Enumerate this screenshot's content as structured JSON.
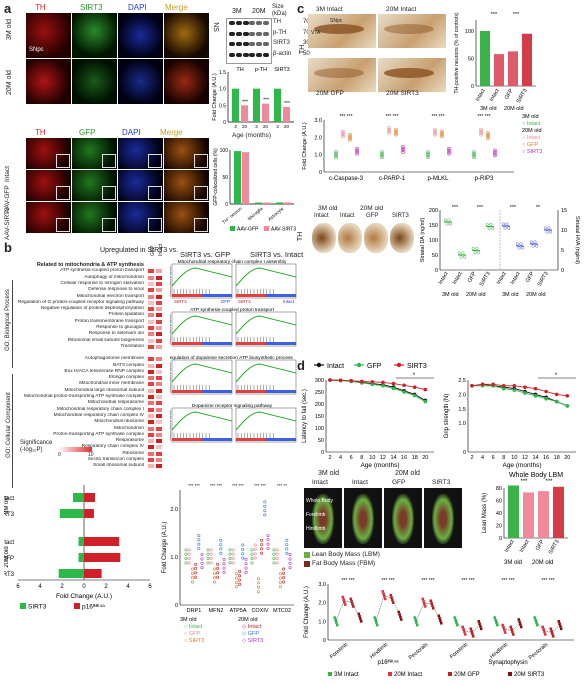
{
  "panel_letters": {
    "a": "a",
    "b": "b",
    "c": "c",
    "d": "d"
  },
  "panel_a": {
    "stain_labels": [
      "TH",
      "SIRT3",
      "DAPI",
      "Merge"
    ],
    "rows": [
      "3M old",
      "20M old"
    ],
    "snpc": "SNpc",
    "blot": {
      "title_3m": "3M",
      "title_20m": "20M",
      "size_label": "Size\n(kDa)",
      "region": "SN",
      "bands": [
        "TH",
        "p-TH",
        "SIRT3",
        "β-actin"
      ],
      "sizes": [
        "70",
        "70",
        "30",
        "50"
      ]
    },
    "chart_data": {
      "type": "bar",
      "categories": [
        "TH",
        "p-TH",
        "SIRT3"
      ],
      "series": [
        {
          "name": "3",
          "values": [
            1.0,
            1.0,
            1.0
          ]
        },
        {
          "name": "20",
          "values": [
            0.5,
            0.55,
            0.45
          ]
        }
      ],
      "ylabel": "Fold Change (A.U.)",
      "xlabel": "Age (months)",
      "ylim": [
        0,
        1.5
      ],
      "yticks": [
        "0",
        "0.5",
        "1.0",
        "1.5"
      ],
      "xticks": [
        "3",
        "20",
        "3",
        "20",
        "3",
        "20"
      ],
      "sig": [
        "***",
        "***",
        "***"
      ]
    },
    "stain2": [
      "TH",
      "GFP",
      "DAPI",
      "Merge"
    ],
    "rows2": [
      "Intact",
      "AAV-GFP",
      "AAV-SIRT3"
    ],
    "coloc": {
      "ylabel": "GFP-colocalized cells (%)",
      "yticks": [
        "0",
        "50",
        "100"
      ],
      "categories": [
        "TH⁺ neuron",
        "Microglia",
        "Astrocyte"
      ],
      "legend": [
        "AAV-GFP",
        "AAV-SIRT3"
      ],
      "values_gfp": [
        98,
        2,
        3
      ],
      "values_sirt3": [
        96,
        2,
        3
      ]
    }
  },
  "panel_b": {
    "heading": "Upregulated in SIRT3 vs.",
    "col_heads": [
      "GFP",
      "Intact"
    ],
    "bp_label": "GO: Biological Process",
    "cc_label": "GO: Cellular Component",
    "bp_terms": [
      "Related to mitochondria & ATP synthesis",
      "ATP synthesis-coupled proton transport",
      "Autophagy of mitochondrion",
      "Cellular response to nitrogen starvation",
      "Defense response to virus",
      "Mitochondrial electron transport",
      "Regulation of G protein-coupled receptor signaling pathway",
      "Negative regulation of protein dephosphorylation",
      "Protein lipidation",
      "Proton transmembrane transport",
      "Response to glucagon",
      "Response to selenium ion",
      "Ribosomal small subunit biogenesis",
      "Translation"
    ],
    "cc_terms": [
      "Autophagosome membrane",
      "BAT3 complex",
      "Box H/ACA telomerase RNP complex",
      "Elongin complex",
      "Mitochondrial inner membrane",
      "Mitochondrial large ribosomal subunit",
      "Mitochondrial proton-transporting ATP synthase complex",
      "Mitochondrial respirasome",
      "Mitochondrial respiratory chain complex I",
      "Mitochondrial respiratory chain complex IV",
      "Mitochondrial ribosome",
      "Mitochondrion",
      "Proton-transporting ATP synthase complex",
      "Respirasome",
      "Respiratory chain complex IV",
      "Ribosome",
      "Sec61 translocon complex",
      "Small ribosomal subunit"
    ],
    "sig_label": "Significance\n(-log₁₀P)",
    "sig_scale": [
      "0",
      "10"
    ],
    "gsea_titles": [
      "SIRT3 vs. GFP",
      "SIRT3 vs. Intact"
    ],
    "gsea_sets": [
      "Mitochondrial respiratory chain complex I assembly",
      "ATP synthesis-coupled proton transport",
      "Regulation of dopamine secretion",
      "ATP biosynthetic process",
      "Dopamine receptor signaling pathway"
    ],
    "es_label": "Enrichment score",
    "gsea_axis": [
      "SIRT3",
      "GFP",
      "SIRT3",
      "Intact"
    ],
    "hbar": {
      "rows": [
        "Intact",
        "SIRT3",
        "Intact",
        "GFP",
        "SIRT3"
      ],
      "groups": [
        "3M old",
        "20M old"
      ],
      "xlabel": "Fold Change (A.U.)",
      "xticks": [
        "6",
        "4",
        "2",
        "0",
        "2",
        "4",
        "6"
      ],
      "legend": [
        "SIRT3",
        "p16ᴵᴺᴷ⁴ᵃ"
      ],
      "sirt3": [
        1.0,
        2.2,
        0.5,
        0.5,
        2.3
      ],
      "p16": [
        1.0,
        0.9,
        3.2,
        3.3,
        1.6
      ]
    },
    "dot": {
      "categories": [
        "DRP1",
        "MFN2",
        "ATP5A",
        "COXIV",
        "MTC02"
      ],
      "ylabel": "Fold Change (A.U.)",
      "yticks": [
        "0",
        "1.0",
        "2.0"
      ],
      "legend": [
        "3M old",
        "○ Intact",
        "○ GFP",
        "○ SIRT3",
        "20M old",
        "◇ Intact",
        "◇ GFP",
        "◇ SIRT3"
      ],
      "sig": [
        "*** ***",
        "*** ***",
        "*** ***",
        "*** ***",
        "*** **"
      ]
    }
  },
  "panel_c": {
    "img_labels": [
      "3M Intact",
      "20M Intact",
      "20M GFP",
      "20M SIRT3"
    ],
    "vta": "VTA",
    "snpc": "SNpc",
    "th": "TH",
    "bar": {
      "ylabel": "TH-positive neurons (% of controls)",
      "yticks": [
        "0",
        "50",
        "100"
      ],
      "categories": [
        "Intact",
        "Intact",
        "GFP",
        "SIRT3"
      ],
      "groups": [
        "3M old",
        "20M old"
      ],
      "values": [
        100,
        58,
        63,
        95
      ],
      "colors": [
        "#3cb34a",
        "#e05a6a",
        "#e05a6a",
        "#d43c4a"
      ],
      "sig": [
        "***",
        "***"
      ]
    },
    "dots": {
      "ylabel": "Fold Change (A.U.)",
      "yticks": [
        "0",
        "1.0",
        "2.0",
        "3.0"
      ],
      "categories": [
        "c-Caspase-3",
        "c-PARP-1",
        "p-MLKL",
        "p-RIP3"
      ],
      "legend": [
        "3M old",
        "○ Intact",
        "20M old",
        "○ Intact",
        "○ GFP",
        "○ SIRT3"
      ]
    },
    "striatum": {
      "col_heads": [
        "3M old",
        "20M old"
      ],
      "sub": [
        "Intact",
        "Intact",
        "GFP",
        "SIRT3"
      ],
      "ylabel_left": "Striatal DA (ng/ml)",
      "ylabel_right": "Striatal HVA (ng/ml)",
      "yticks_left": [
        "0",
        "50",
        "100",
        "150",
        "200"
      ],
      "yticks_right": [
        "0",
        "5",
        "10",
        "15"
      ],
      "categories": [
        "Intact",
        "Intact",
        "GFP",
        "SIRT3"
      ],
      "groups": [
        "3M old",
        "20M old"
      ],
      "da": [
        160,
        50,
        65,
        145
      ],
      "hva": [
        11,
        6,
        6.5,
        10
      ],
      "sig": [
        "***",
        "***",
        "***",
        "**"
      ]
    }
  },
  "panel_d": {
    "legend": [
      "Intact",
      "GFP",
      "SIRT3"
    ],
    "line1": {
      "ylabel": "Latency to fall (sec.)",
      "yticks": [
        "0",
        "50",
        "100",
        "150",
        "200",
        "250",
        "300"
      ],
      "xlabel": "Age (months)",
      "x": [
        2,
        4,
        6,
        8,
        10,
        12,
        14,
        16,
        18,
        20
      ],
      "intact": [
        300,
        298,
        295,
        290,
        285,
        280,
        270,
        255,
        240,
        215
      ],
      "gfp": [
        300,
        298,
        294,
        288,
        282,
        276,
        265,
        250,
        235,
        210
      ],
      "sirt3": [
        300,
        299,
        297,
        294,
        292,
        290,
        285,
        278,
        270,
        260
      ],
      "xticks": [
        "2",
        "4",
        "6",
        "8",
        "10",
        "12",
        "14",
        "16",
        "18",
        "20"
      ]
    },
    "line2": {
      "ylabel": "Grip strength (N)",
      "yticks": [
        "0",
        "1.0",
        "1.5",
        "2.0",
        "2.5"
      ],
      "xlabel": "Age (months)",
      "x": [
        2,
        4,
        6,
        8,
        10,
        12,
        14,
        16,
        18,
        20
      ],
      "intact": [
        2.3,
        2.35,
        2.3,
        2.25,
        2.2,
        2.1,
        2.0,
        1.9,
        1.75,
        1.6
      ],
      "gfp": [
        2.3,
        2.3,
        2.3,
        2.2,
        2.15,
        2.05,
        1.95,
        1.85,
        1.75,
        1.6
      ],
      "sirt3": [
        2.3,
        2.35,
        2.35,
        2.3,
        2.3,
        2.25,
        2.2,
        2.1,
        2.0,
        1.95
      ],
      "xticks": [
        "2",
        "4",
        "6",
        "8",
        "10",
        "12",
        "14",
        "16",
        "18",
        "20"
      ]
    },
    "scan": {
      "heads": [
        "3M old",
        "20M old"
      ],
      "sub": [
        "Intact",
        "Intact",
        "GFP",
        "SIRT3"
      ],
      "tags": [
        "Whole Body",
        "Forelimb",
        "Hindlimb"
      ],
      "legend": [
        "Lean Body Mass (LBM)",
        "Fat Body Mass (FBM)"
      ]
    },
    "lbm": {
      "title": "Whole Body LBM",
      "ylabel": "Lean Mass (%)",
      "yticks": [
        "0",
        "20",
        "40",
        "60",
        "80"
      ],
      "categories": [
        "Intact",
        "Intact",
        "GFP",
        "SIRT3"
      ],
      "groups": [
        "3M old",
        "20M old"
      ],
      "values": [
        84,
        73,
        75,
        82
      ],
      "sig": [
        "***",
        "***"
      ]
    },
    "dots": {
      "ylabel": "Fold Change (A.U.)",
      "yticks": [
        "0",
        "1.0",
        "2.0",
        "3.0"
      ],
      "categories": [
        "Forelimb",
        "Hindlimb",
        "Pectorals",
        "Forelimb",
        "Hindlimb",
        "Pectorals"
      ],
      "groups": [
        "p16ᴵᴺᴷ⁴ᵃ",
        "Synaptophysin"
      ],
      "legend": [
        "3M Intact",
        "20M Intact",
        "20M GFP",
        "20M SIRT3"
      ]
    }
  }
}
